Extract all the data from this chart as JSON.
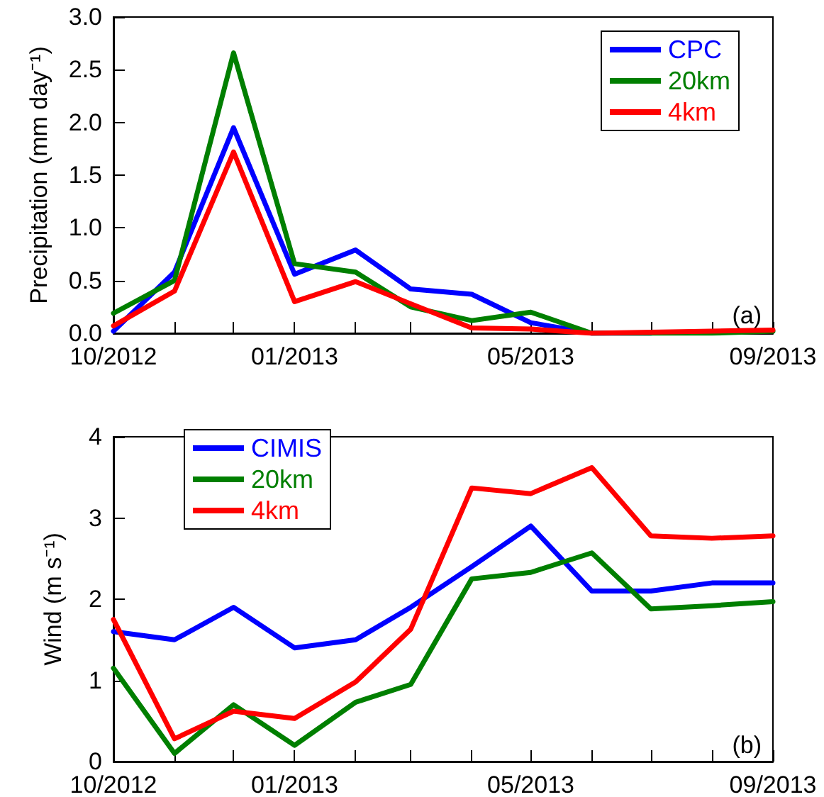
{
  "chart_data": [
    {
      "type": "line",
      "ylabel": "Precipitation (mm day⁻¹)",
      "x": [
        "2012-10",
        "2012-11",
        "2012-12",
        "2013-01",
        "2013-02",
        "2013-03",
        "2013-04",
        "2013-05",
        "2013-06",
        "2013-07",
        "2013-08",
        "2013-09"
      ],
      "xlim": [
        "2012-10",
        "2013-09"
      ],
      "xticks": [
        {
          "value": "2012-10",
          "label": "10/2012"
        },
        {
          "value": "2012-11",
          "label": null
        },
        {
          "value": "2012-12",
          "label": null
        },
        {
          "value": "2013-01",
          "label": "01/2013"
        },
        {
          "value": "2013-02",
          "label": null
        },
        {
          "value": "2013-03",
          "label": null
        },
        {
          "value": "2013-04",
          "label": null
        },
        {
          "value": "2013-05",
          "label": "05/2013"
        },
        {
          "value": "2013-06",
          "label": null
        },
        {
          "value": "2013-07",
          "label": null
        },
        {
          "value": "2013-08",
          "label": null
        },
        {
          "value": "2013-09",
          "label": "09/2013"
        }
      ],
      "ylim": [
        0,
        3
      ],
      "yticks": [
        {
          "value": 0,
          "label": "0.0"
        },
        {
          "value": 0.5,
          "label": "0.5"
        },
        {
          "value": 1,
          "label": "1.0"
        },
        {
          "value": 1.5,
          "label": "1.5"
        },
        {
          "value": 2,
          "label": "2.0"
        },
        {
          "value": 2.5,
          "label": "2.5"
        },
        {
          "value": 3,
          "label": "3.0"
        }
      ],
      "series": [
        {
          "name": "CPC",
          "color": "#0000ff",
          "values": [
            0.02,
            0.58,
            1.95,
            0.56,
            0.79,
            0.42,
            0.37,
            0.1,
            0.0,
            0.0,
            null,
            null
          ]
        },
        {
          "name": "20km",
          "color": "#007f00",
          "values": [
            0.19,
            0.5,
            2.66,
            0.66,
            0.58,
            0.25,
            0.12,
            0.2,
            0.0,
            0.0,
            0.0,
            0.02
          ]
        },
        {
          "name": "4km",
          "color": "#ff0000",
          "values": [
            0.07,
            0.4,
            1.72,
            0.3,
            0.49,
            0.28,
            0.05,
            0.04,
            0.0,
            0.01,
            0.02,
            0.03
          ]
        }
      ],
      "annotations": [
        "(a)"
      ],
      "legend": "top right",
      "grid": false,
      "marker": "none",
      "line_style": "solid"
    },
    {
      "type": "line",
      "ylabel": "Wind (m s⁻¹)",
      "x": [
        "2012-10",
        "2012-11",
        "2012-12",
        "2013-01",
        "2013-02",
        "2013-03",
        "2013-04",
        "2013-05",
        "2013-06",
        "2013-07",
        "2013-08",
        "2013-09"
      ],
      "xlim": [
        "2012-10",
        "2013-09"
      ],
      "xticks": [
        {
          "value": "2012-10",
          "label": "10/2012"
        },
        {
          "value": "2012-11",
          "label": null
        },
        {
          "value": "2012-12",
          "label": null
        },
        {
          "value": "2013-01",
          "label": "01/2013"
        },
        {
          "value": "2013-02",
          "label": null
        },
        {
          "value": "2013-03",
          "label": null
        },
        {
          "value": "2013-04",
          "label": null
        },
        {
          "value": "2013-05",
          "label": "05/2013"
        },
        {
          "value": "2013-06",
          "label": null
        },
        {
          "value": "2013-07",
          "label": null
        },
        {
          "value": "2013-08",
          "label": null
        },
        {
          "value": "2013-09",
          "label": "09/2013"
        }
      ],
      "ylim": [
        0,
        4
      ],
      "yticks": [
        0,
        1,
        2,
        3,
        4
      ],
      "series": [
        {
          "name": "CIMIS",
          "color": "#0000ff",
          "values": [
            1.6,
            1.5,
            1.9,
            1.4,
            1.5,
            1.9,
            2.4,
            2.9,
            2.1,
            2.1,
            2.2,
            2.2
          ]
        },
        {
          "name": "20km",
          "color": "#007f00",
          "values": [
            1.15,
            0.1,
            0.7,
            0.2,
            0.73,
            0.95,
            2.25,
            2.33,
            2.57,
            1.88,
            1.92,
            1.97
          ]
        },
        {
          "name": "4km",
          "color": "#ff0000",
          "values": [
            1.75,
            0.28,
            0.62,
            0.53,
            0.98,
            1.63,
            3.37,
            3.3,
            3.62,
            2.78,
            2.75,
            2.78
          ]
        }
      ],
      "annotations": [
        "(b)"
      ],
      "legend": "top left",
      "grid": false,
      "marker": "none",
      "line_style": "solid"
    }
  ]
}
